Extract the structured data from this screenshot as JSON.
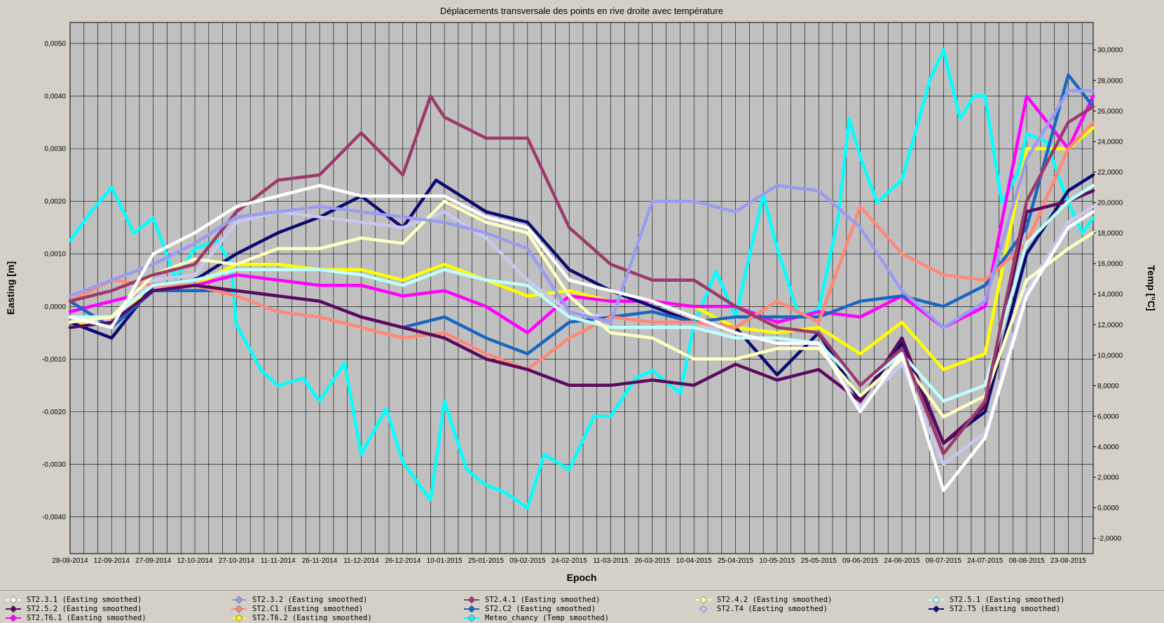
{
  "chart_data": {
    "type": "line",
    "title": "Déplacements transversale des points en rive droite avec température",
    "xlabel": "Epoch",
    "ylabel": "Easting [m]",
    "y2label": "Temp [°C]",
    "ylim": [
      -0.0047,
      0.0054
    ],
    "y2lim": [
      -3.0,
      31.8
    ],
    "x_range": [
      "2014-08-28",
      "2015-09-01"
    ],
    "grid": true,
    "legend_position": "bottom",
    "x_ticks": [
      "28-08-2014",
      "12-09-2014",
      "27-09-2014",
      "12-10-2014",
      "27-10-2014",
      "11-11-2014",
      "26-11-2014",
      "11-12-2014",
      "26-12-2014",
      "10-01-2015",
      "25-01-2015",
      "09-02-2015",
      "24-02-2015",
      "11-03-2015",
      "26-03-2015",
      "10-04-2015",
      "25-04-2015",
      "10-05-2015",
      "25-05-2015",
      "09-06-2015",
      "24-06-2015",
      "09-07-2015",
      "24-07-2015",
      "08-08-2015",
      "23-08-2015"
    ],
    "y_ticks": [
      "0,0050",
      "0,0040",
      "0,0030",
      "0,0020",
      "0,0010",
      "0,0000",
      "-0,0010",
      "-0,0020",
      "-0,0030",
      "-0,0040"
    ],
    "y_tick_values": [
      0.005,
      0.004,
      0.003,
      0.002,
      0.001,
      0,
      -0.001,
      -0.002,
      -0.003,
      -0.004
    ],
    "y2_ticks": [
      "30,0000",
      "28,0000",
      "26,0000",
      "24,0000",
      "22,0000",
      "20,0000",
      "18,0000",
      "16,0000",
      "14,0000",
      "12,0000",
      "10,0000",
      "8,0000",
      "6,0000",
      "4,0000",
      "2,0000",
      "0,0000",
      "-2,0000"
    ],
    "y2_tick_values": [
      30,
      28,
      26,
      24,
      22,
      20,
      18,
      16,
      14,
      12,
      10,
      8,
      6,
      4,
      2,
      0,
      -2
    ],
    "series": [
      {
        "name": "ST2.3.1 (Easting smoothed)",
        "color": "#ffffff",
        "axis": "y",
        "x": [
          "2014-08-28",
          "2014-09-12",
          "2014-09-27",
          "2014-10-12",
          "2014-10-27",
          "2014-11-11",
          "2014-11-26",
          "2014-12-11",
          "2014-12-26",
          "2015-01-10",
          "2015-01-25",
          "2015-02-09",
          "2015-02-24",
          "2015-03-11",
          "2015-03-26",
          "2015-04-10",
          "2015-04-25",
          "2015-05-10",
          "2015-05-25",
          "2015-06-09",
          "2015-06-24",
          "2015-07-09",
          "2015-07-24",
          "2015-08-08",
          "2015-08-23",
          "2015-09-01"
        ],
        "values": [
          -0.0002,
          -0.0004,
          0.001,
          0.0014,
          0.0019,
          0.0021,
          0.0023,
          0.0021,
          0.0021,
          0.0021,
          0.0017,
          0.0015,
          0.0005,
          0.0003,
          0.0001,
          -0.0002,
          -0.0005,
          -0.0007,
          -0.0007,
          -0.002,
          -0.0009,
          -0.0035,
          -0.0025,
          0.0002,
          0.0015,
          0.0018
        ]
      },
      {
        "name": "ST2.3.2 (Easting smoothed)",
        "color": "#9a9cf0",
        "axis": "y",
        "x": [
          "2014-08-28",
          "2014-09-12",
          "2014-09-27",
          "2014-10-12",
          "2014-10-27",
          "2014-11-11",
          "2014-11-26",
          "2014-12-11",
          "2014-12-26",
          "2015-01-10",
          "2015-01-25",
          "2015-02-09",
          "2015-02-24",
          "2015-03-11",
          "2015-03-26",
          "2015-04-10",
          "2015-04-25",
          "2015-05-10",
          "2015-05-25",
          "2015-06-09",
          "2015-06-24",
          "2015-07-09",
          "2015-07-24",
          "2015-08-08",
          "2015-08-23",
          "2015-09-01"
        ],
        "values": [
          0.0002,
          0.0005,
          0.0008,
          0.0012,
          0.0017,
          0.0018,
          0.0019,
          0.0018,
          0.0017,
          0.0016,
          0.0014,
          0.0011,
          -0.0001,
          -0.0003,
          0.002,
          0.002,
          0.0018,
          0.0023,
          0.0022,
          0.0015,
          0.0003,
          -0.0004,
          0.0001,
          0.0028,
          0.0041,
          0.0041
        ]
      },
      {
        "name": "ST2.4.1 (Easting smoothed)",
        "color": "#9c3a6a",
        "axis": "y",
        "x": [
          "2014-08-28",
          "2014-09-12",
          "2014-09-27",
          "2014-10-12",
          "2014-10-27",
          "2014-11-11",
          "2014-11-26",
          "2014-12-11",
          "2014-12-26",
          "2015-01-05",
          "2015-01-10",
          "2015-01-25",
          "2015-02-09",
          "2015-02-24",
          "2015-03-11",
          "2015-03-26",
          "2015-04-10",
          "2015-04-25",
          "2015-05-10",
          "2015-05-25",
          "2015-06-09",
          "2015-06-24",
          "2015-07-09",
          "2015-07-24",
          "2015-08-08",
          "2015-08-23",
          "2015-09-01"
        ],
        "values": [
          0.0001,
          0.0003,
          0.0006,
          0.0008,
          0.0018,
          0.0024,
          0.0025,
          0.0033,
          0.0025,
          0.004,
          0.0036,
          0.0032,
          0.0032,
          0.0015,
          0.0008,
          0.0005,
          0.0005,
          0.0,
          -0.0004,
          -0.0005,
          -0.0015,
          -0.0008,
          -0.0028,
          -0.0018,
          0.002,
          0.0035,
          0.0038
        ]
      },
      {
        "name": "ST2.4.2 (Easting smoothed)",
        "color": "#ffffc0",
        "axis": "y",
        "x": [
          "2014-08-28",
          "2014-09-12",
          "2014-09-27",
          "2014-10-12",
          "2014-10-27",
          "2014-11-11",
          "2014-11-26",
          "2014-12-11",
          "2014-12-26",
          "2015-01-10",
          "2015-01-25",
          "2015-02-09",
          "2015-02-24",
          "2015-03-11",
          "2015-03-26",
          "2015-04-10",
          "2015-04-25",
          "2015-05-10",
          "2015-05-25",
          "2015-06-09",
          "2015-06-24",
          "2015-07-09",
          "2015-07-24",
          "2015-08-08",
          "2015-08-23",
          "2015-09-01"
        ],
        "values": [
          -0.0003,
          -0.0002,
          0.0006,
          0.0009,
          0.0008,
          0.0011,
          0.0011,
          0.0013,
          0.0012,
          0.002,
          0.0016,
          0.0014,
          0.0002,
          -0.0005,
          -0.0006,
          -0.001,
          -0.001,
          -0.0008,
          -0.0008,
          -0.0017,
          -0.001,
          -0.0021,
          -0.0017,
          0.0005,
          0.0011,
          0.0014
        ]
      },
      {
        "name": "ST2.5.1 (Easting smoothed)",
        "color": "#c0ffff",
        "axis": "y",
        "x": [
          "2014-08-28",
          "2014-09-12",
          "2014-09-27",
          "2014-10-12",
          "2014-10-27",
          "2014-11-11",
          "2014-11-26",
          "2014-12-11",
          "2014-12-26",
          "2015-01-10",
          "2015-01-25",
          "2015-02-09",
          "2015-02-24",
          "2015-03-11",
          "2015-03-26",
          "2015-04-10",
          "2015-04-25",
          "2015-05-10",
          "2015-05-25",
          "2015-06-09",
          "2015-06-24",
          "2015-07-09",
          "2015-07-24",
          "2015-08-08",
          "2015-08-23",
          "2015-09-01"
        ],
        "values": [
          -0.0002,
          -0.0002,
          0.0004,
          0.0005,
          0.0007,
          0.0007,
          0.0007,
          0.0006,
          0.0004,
          0.0007,
          0.0005,
          0.0004,
          -0.0002,
          -0.0004,
          -0.0004,
          -0.0004,
          -0.0006,
          -0.0006,
          -0.0007,
          -0.0015,
          -0.0009,
          -0.0018,
          -0.0015,
          0.0012,
          0.002,
          0.0023
        ]
      },
      {
        "name": "ST2.5.2 (Easting smoothed)",
        "color": "#5c0a5c",
        "axis": "y",
        "x": [
          "2014-08-28",
          "2014-09-12",
          "2014-09-27",
          "2014-10-12",
          "2014-10-27",
          "2014-11-11",
          "2014-11-26",
          "2014-12-11",
          "2014-12-26",
          "2015-01-10",
          "2015-01-25",
          "2015-02-09",
          "2015-02-24",
          "2015-03-11",
          "2015-03-26",
          "2015-04-10",
          "2015-04-25",
          "2015-05-10",
          "2015-05-25",
          "2015-06-09",
          "2015-06-24",
          "2015-07-09",
          "2015-07-24",
          "2015-08-08",
          "2015-08-23",
          "2015-09-01"
        ],
        "values": [
          -0.0004,
          -0.0003,
          0.0003,
          0.0004,
          0.0003,
          0.0002,
          0.0001,
          -0.0002,
          -0.0004,
          -0.0006,
          -0.001,
          -0.0012,
          -0.0015,
          -0.0015,
          -0.0014,
          -0.0015,
          -0.0011,
          -0.0014,
          -0.0012,
          -0.0018,
          -0.0006,
          -0.0026,
          -0.0019,
          0.0018,
          0.002,
          0.0022
        ]
      },
      {
        "name": "ST2.C1 (Easting smoothed)",
        "color": "#ff8878",
        "axis": "y",
        "x": [
          "2014-08-28",
          "2014-09-12",
          "2014-09-27",
          "2014-10-12",
          "2014-10-27",
          "2014-11-11",
          "2014-11-26",
          "2014-12-11",
          "2014-12-26",
          "2015-01-10",
          "2015-01-25",
          "2015-02-09",
          "2015-02-24",
          "2015-03-11",
          "2015-03-26",
          "2015-04-10",
          "2015-04-25",
          "2015-05-10",
          "2015-05-25",
          "2015-06-09",
          "2015-06-24",
          "2015-07-09",
          "2015-07-24",
          "2015-08-08",
          "2015-08-23",
          "2015-09-01"
        ],
        "values": [
          0.0001,
          0.0005,
          0.0004,
          0.0004,
          0.0002,
          -0.0001,
          -0.0002,
          -0.0004,
          -0.0006,
          -0.0005,
          -0.0009,
          -0.0012,
          -0.0006,
          -0.0002,
          -0.0003,
          -0.0003,
          -0.0004,
          0.0001,
          -0.0003,
          0.0019,
          0.001,
          0.0006,
          0.0005,
          0.0012,
          0.003,
          0.0035
        ]
      },
      {
        "name": "ST2.C2 (Easting smoothed)",
        "color": "#1a66c0",
        "axis": "y",
        "x": [
          "2014-08-28",
          "2014-09-12",
          "2014-09-27",
          "2014-10-12",
          "2014-10-27",
          "2014-11-11",
          "2014-11-26",
          "2014-12-11",
          "2014-12-26",
          "2015-01-10",
          "2015-01-25",
          "2015-02-09",
          "2015-02-24",
          "2015-03-11",
          "2015-03-26",
          "2015-04-10",
          "2015-04-25",
          "2015-05-10",
          "2015-05-25",
          "2015-06-09",
          "2015-06-24",
          "2015-07-09",
          "2015-07-24",
          "2015-08-08",
          "2015-08-23",
          "2015-09-01"
        ],
        "values": [
          0.0001,
          -0.0004,
          0.0003,
          0.0003,
          0.0003,
          0.0002,
          0.0001,
          -0.0002,
          -0.0004,
          -0.0002,
          -0.0006,
          -0.0009,
          -0.0003,
          -0.0002,
          -0.0001,
          -0.0003,
          -0.0002,
          -0.0002,
          -0.0002,
          0.0001,
          0.0002,
          0.0,
          0.0004,
          0.0015,
          0.0044,
          0.0038
        ]
      },
      {
        "name": "ST2.T4 (Easting smoothed)",
        "color": "#c8c8f0",
        "axis": "y",
        "x": [
          "2014-08-28",
          "2014-09-12",
          "2014-09-27",
          "2014-10-12",
          "2014-10-27",
          "2014-11-11",
          "2014-11-26",
          "2014-12-11",
          "2014-12-26",
          "2015-01-10",
          "2015-01-25",
          "2015-02-09",
          "2015-02-24",
          "2015-03-11",
          "2015-03-26",
          "2015-04-10",
          "2015-04-25",
          "2015-05-10",
          "2015-05-25",
          "2015-06-09",
          "2015-06-24",
          "2015-07-09",
          "2015-07-24",
          "2015-08-08",
          "2015-08-23",
          "2015-09-01"
        ],
        "values": [
          -0.0002,
          -0.0003,
          0.0005,
          0.0006,
          0.0016,
          0.0018,
          0.0017,
          0.0016,
          0.0015,
          0.0018,
          0.0013,
          0.0005,
          -0.0001,
          -0.0002,
          -0.0003,
          -0.0003,
          -0.0006,
          -0.0006,
          -0.0007,
          -0.0019,
          -0.0011,
          -0.003,
          -0.0024,
          0.0003,
          0.0016,
          0.0019
        ]
      },
      {
        "name": "ST2.T5 (Easting smoothed)",
        "color": "#0a0a70",
        "axis": "y",
        "x": [
          "2014-08-28",
          "2014-09-12",
          "2014-09-27",
          "2014-10-12",
          "2014-10-27",
          "2014-11-11",
          "2014-11-26",
          "2014-12-11",
          "2014-12-26",
          "2015-01-07",
          "2015-01-25",
          "2015-02-09",
          "2015-02-24",
          "2015-03-11",
          "2015-03-26",
          "2015-04-10",
          "2015-04-25",
          "2015-05-10",
          "2015-05-25",
          "2015-06-09",
          "2015-06-24",
          "2015-07-09",
          "2015-07-24",
          "2015-08-08",
          "2015-08-23",
          "2015-09-01"
        ],
        "values": [
          -0.0003,
          -0.0006,
          0.0004,
          0.0005,
          0.001,
          0.0014,
          0.0017,
          0.0021,
          0.0015,
          0.0024,
          0.0018,
          0.0016,
          0.0007,
          0.0003,
          0.0,
          -0.0003,
          -0.0004,
          -0.0013,
          -0.0005,
          -0.0018,
          -0.0007,
          -0.0026,
          -0.002,
          0.001,
          0.0022,
          0.0025
        ]
      },
      {
        "name": "ST2.T6.1 (Easting smoothed)",
        "color": "#ff00ff",
        "axis": "y",
        "x": [
          "2014-08-28",
          "2014-09-12",
          "2014-09-27",
          "2014-10-12",
          "2014-10-27",
          "2014-11-11",
          "2014-11-26",
          "2014-12-11",
          "2014-12-26",
          "2015-01-10",
          "2015-01-25",
          "2015-02-09",
          "2015-02-24",
          "2015-03-11",
          "2015-03-26",
          "2015-04-10",
          "2015-04-25",
          "2015-05-10",
          "2015-05-25",
          "2015-06-09",
          "2015-06-24",
          "2015-07-09",
          "2015-07-24",
          "2015-08-08",
          "2015-08-23",
          "2015-09-01"
        ],
        "values": [
          -0.0001,
          0.0001,
          0.0003,
          0.0004,
          0.0006,
          0.0005,
          0.0004,
          0.0004,
          0.0002,
          0.0003,
          0.0,
          -0.0005,
          0.0002,
          0.0001,
          0.0001,
          0.0,
          0.0,
          -0.0003,
          -0.0001,
          -0.0002,
          0.0002,
          -0.0004,
          0.0,
          0.004,
          0.003,
          0.004
        ]
      },
      {
        "name": "ST2.T6.2 (Easting smoothed)",
        "color": "#ffff00",
        "axis": "y",
        "x": [
          "2014-08-28",
          "2014-09-12",
          "2014-09-27",
          "2014-10-12",
          "2014-10-27",
          "2014-11-11",
          "2014-11-26",
          "2014-12-11",
          "2014-12-26",
          "2015-01-10",
          "2015-01-25",
          "2015-02-09",
          "2015-02-24",
          "2015-03-11",
          "2015-03-26",
          "2015-04-10",
          "2015-04-25",
          "2015-05-10",
          "2015-05-25",
          "2015-06-09",
          "2015-06-24",
          "2015-07-09",
          "2015-07-24",
          "2015-08-08",
          "2015-08-23",
          "2015-09-01"
        ],
        "values": [
          -0.0004,
          -0.0002,
          0.0003,
          0.0004,
          0.0008,
          0.0008,
          0.0007,
          0.0007,
          0.0005,
          0.0008,
          0.0005,
          0.0002,
          0.0003,
          0.0001,
          0.0001,
          0.0,
          -0.0004,
          -0.0005,
          -0.0004,
          -0.0009,
          -0.0003,
          -0.0012,
          -0.0009,
          0.003,
          0.003,
          0.0034
        ]
      },
      {
        "name": "Meteo_chancy (Temp smoothed)",
        "color": "#00ffff",
        "axis": "y2",
        "x": [
          "2014-08-28",
          "2014-09-05",
          "2014-09-12",
          "2014-09-20",
          "2014-09-27",
          "2014-10-05",
          "2014-10-12",
          "2014-10-20",
          "2014-10-25",
          "2014-10-27",
          "2014-11-05",
          "2014-11-11",
          "2014-11-20",
          "2014-11-26",
          "2014-12-05",
          "2014-12-11",
          "2014-12-20",
          "2014-12-26",
          "2015-01-01",
          "2015-01-05",
          "2015-01-10",
          "2015-01-18",
          "2015-01-25",
          "2015-02-01",
          "2015-02-09",
          "2015-02-15",
          "2015-02-24",
          "2015-03-05",
          "2015-03-11",
          "2015-03-20",
          "2015-03-26",
          "2015-04-05",
          "2015-04-10",
          "2015-04-18",
          "2015-04-25",
          "2015-05-05",
          "2015-05-10",
          "2015-05-18",
          "2015-05-25",
          "2015-06-01",
          "2015-06-05",
          "2015-06-09",
          "2015-06-15",
          "2015-06-24",
          "2015-07-01",
          "2015-07-04",
          "2015-07-09",
          "2015-07-15",
          "2015-07-20",
          "2015-07-24",
          "2015-07-30",
          "2015-08-05",
          "2015-08-08",
          "2015-08-15",
          "2015-08-23",
          "2015-08-28",
          "2015-09-01"
        ],
        "values": [
          17.5,
          19.5,
          21.0,
          18.0,
          19.0,
          15.0,
          17.0,
          17.5,
          16.0,
          12.0,
          9.0,
          8.0,
          8.5,
          7.0,
          9.5,
          3.5,
          6.5,
          3.0,
          1.5,
          0.5,
          7.0,
          2.5,
          1.5,
          1.0,
          0.0,
          3.5,
          2.5,
          6.0,
          6.0,
          8.5,
          9.0,
          7.5,
          12.0,
          15.5,
          12.5,
          20.5,
          17.0,
          12.5,
          13.0,
          19.0,
          25.5,
          23.0,
          20.0,
          21.5,
          26.0,
          28.0,
          30.0,
          25.5,
          27.0,
          27.0,
          20.0,
          22.0,
          24.5,
          24.0,
          20.0,
          18.0,
          19.0
        ]
      }
    ]
  }
}
